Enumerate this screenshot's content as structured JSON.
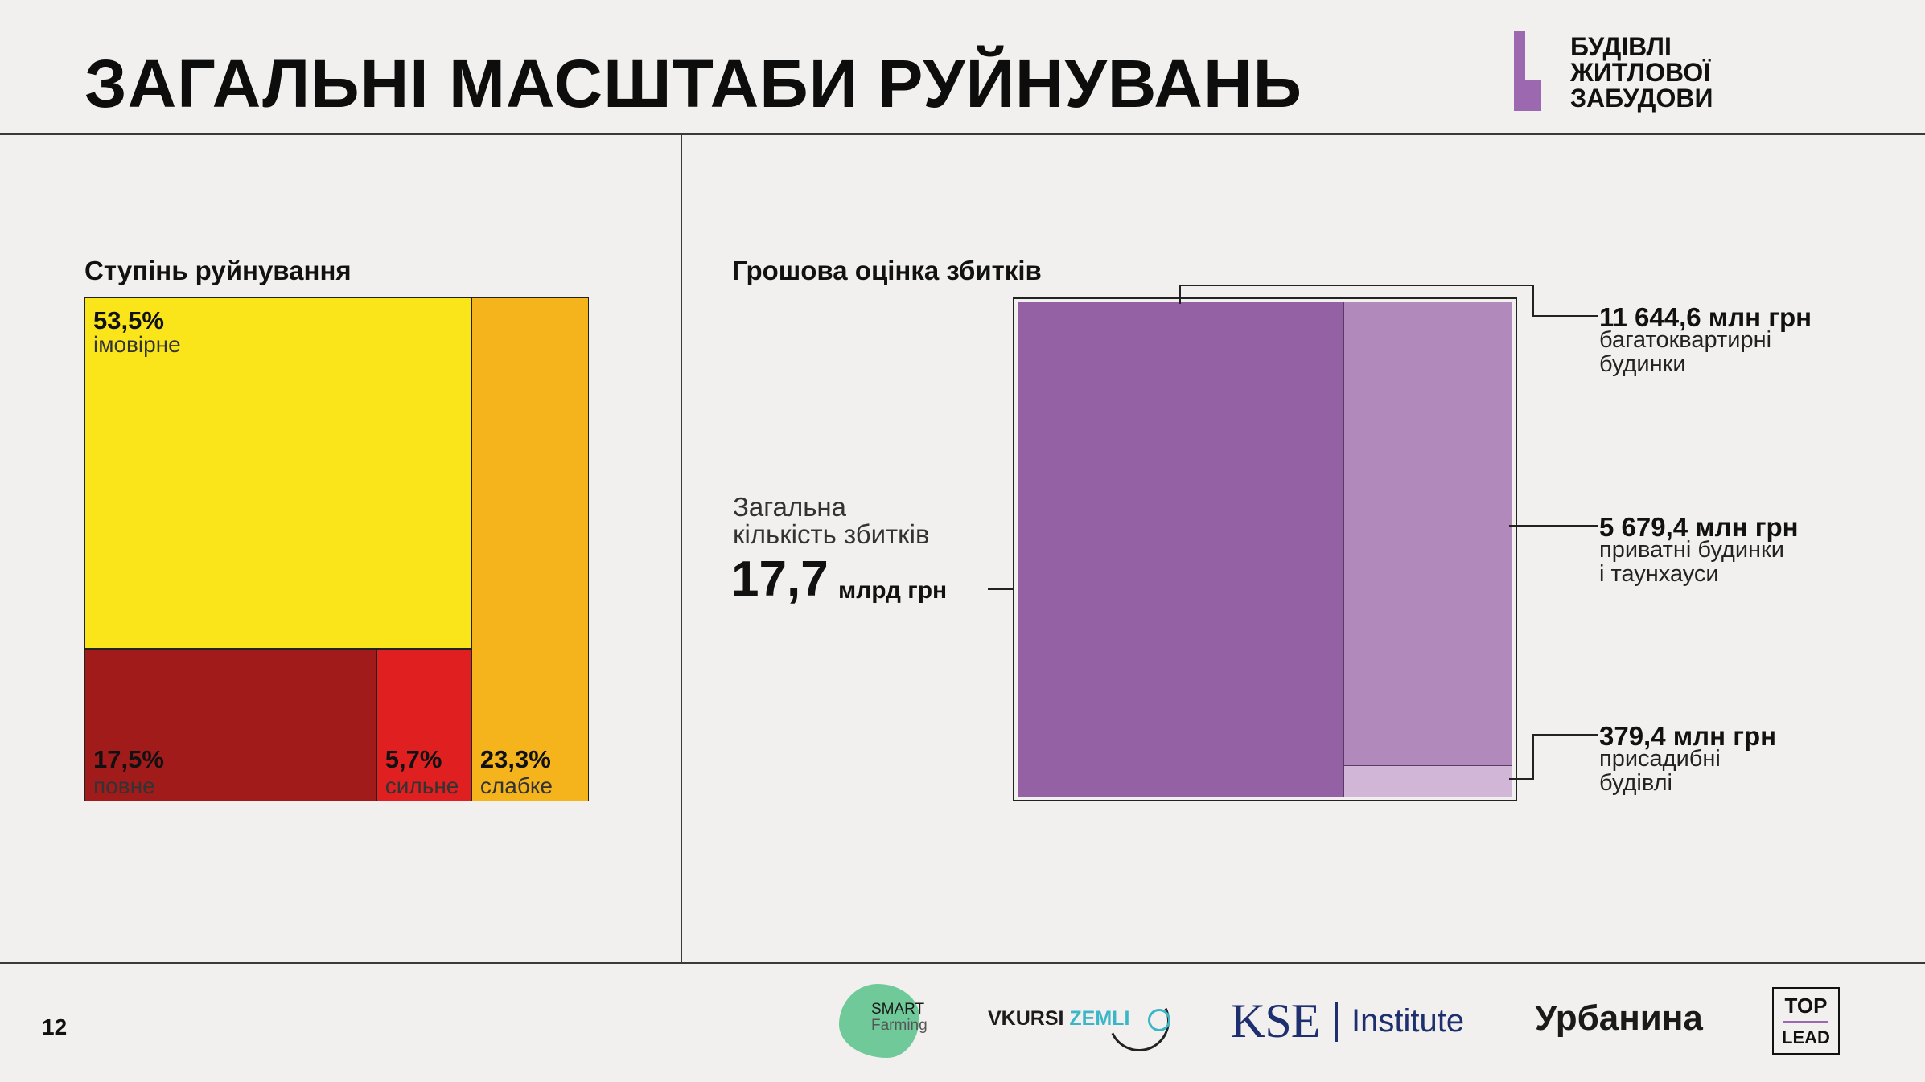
{
  "page": {
    "title": "ЗАГАЛЬНІ МАСШТАБИ РУЙНУВАНЬ",
    "page_number": "12",
    "section_label": [
      "БУДІВЛІ",
      "ЖИТЛОВОЇ",
      "ЗАБУДОВИ"
    ],
    "accent_color": "#9c68b0"
  },
  "chart_data": [
    {
      "type": "treemap",
      "title": "Ступінь руйнування",
      "unit": "%",
      "series": [
        {
          "name": "імовірне",
          "value": 53.5,
          "label": "53,5%",
          "color": "#f9e51a"
        },
        {
          "name": "повне",
          "value": 17.5,
          "label": "17,5%",
          "color": "#a21b1b"
        },
        {
          "name": "сильне",
          "value": 5.7,
          "label": "5,7%",
          "color": "#e02020"
        },
        {
          "name": "слабке",
          "value": 23.3,
          "label": "23,3%",
          "color": "#f5b41c"
        }
      ]
    },
    {
      "type": "treemap",
      "title": "Грошова оцінка збитків",
      "unit": "млн грн",
      "total": {
        "label_lines": [
          "Загальна",
          "кількість збитків"
        ],
        "value": "17,7",
        "unit": "млрд грн"
      },
      "series": [
        {
          "name": "багатоквартирні будинки",
          "value": 11644.6,
          "label": "11 644,6 млн грн",
          "desc_lines": [
            "багатоквартирні",
            "будинки"
          ],
          "color": "#9461a4"
        },
        {
          "name": "приватні будинки і таунхауси",
          "value": 5679.4,
          "label": "5 679,4 млн грн",
          "desc_lines": [
            "приватні будинки",
            "і таунхауси"
          ],
          "color": "#b189ba"
        },
        {
          "name": "присадибні будівлі",
          "value": 379.4,
          "label": "379,4 млн грн",
          "desc_lines": [
            "присадибні",
            "будівлі"
          ],
          "color": "#d2b6d8"
        }
      ]
    }
  ],
  "partners": {
    "smart_farming": [
      "SMART",
      "Farming"
    ],
    "vkursi": [
      "VKURSI ",
      "ZEMLI"
    ],
    "kse": [
      "KSE",
      "Institute"
    ],
    "urbanyna": "Урбанина",
    "toplead": [
      "TOP",
      "LEAD"
    ]
  }
}
